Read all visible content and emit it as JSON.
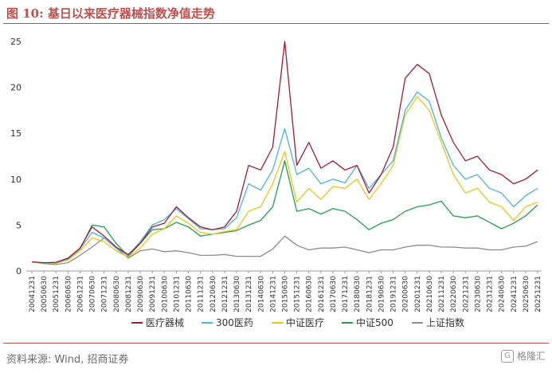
{
  "figure": {
    "title": "图 10:  基日以来医疗器械指数净值走势",
    "source": "资料来源: Wind, 招商证券",
    "watermark": "格隆汇"
  },
  "chart_data": {
    "type": "line",
    "ylim": [
      0,
      25
    ],
    "yticks": [
      0,
      5,
      10,
      15,
      20,
      25
    ],
    "grid": false,
    "legend_position": "bottom",
    "x_tick_labels": [
      "20041231",
      "20050630",
      "20051231",
      "20060630",
      "20061231",
      "20070630",
      "20071231",
      "20080630",
      "20081231",
      "20090630",
      "20091231",
      "20100630",
      "20101231",
      "20110630",
      "20111231",
      "20120630",
      "20121231",
      "20130630",
      "20131231",
      "20140630",
      "20141231",
      "20150630",
      "20151231",
      "20160630",
      "20161231",
      "20170630",
      "20171231",
      "20180630",
      "20181231",
      "20190630",
      "20191231",
      "20200630",
      "20201231",
      "20210630",
      "20211231",
      "20220630",
      "20221231",
      "20230630",
      "20231231",
      "20240630",
      "20241231",
      "20250630",
      "20251231"
    ],
    "series": [
      {
        "name": "医疗器械",
        "color": "#a31c2f",
        "values": [
          1.0,
          0.9,
          0.95,
          1.4,
          2.5,
          4.8,
          3.8,
          2.6,
          1.8,
          3.0,
          4.8,
          5.2,
          7.0,
          5.8,
          4.8,
          4.5,
          4.8,
          6.5,
          11.5,
          11.0,
          13.5,
          25.0,
          11.5,
          14.0,
          11.2,
          12.0,
          11.0,
          11.5,
          8.5,
          10.5,
          13.5,
          21.0,
          22.5,
          21.5,
          17.0,
          14.0,
          12.0,
          12.5,
          11.0,
          10.5,
          9.5,
          10.0,
          11.0
        ]
      },
      {
        "name": "300医药",
        "color": "#4bb3e0",
        "values": [
          1.0,
          0.85,
          0.9,
          1.3,
          2.4,
          4.2,
          3.6,
          2.5,
          1.7,
          3.2,
          5.0,
          5.6,
          6.8,
          5.7,
          4.6,
          4.5,
          4.6,
          5.8,
          9.5,
          8.8,
          11.0,
          15.5,
          10.5,
          11.2,
          9.5,
          10.0,
          9.6,
          11.5,
          9.0,
          10.5,
          12.0,
          17.5,
          19.5,
          18.5,
          14.5,
          11.5,
          10.0,
          10.5,
          9.0,
          8.5,
          7.0,
          8.2,
          9.0
        ]
      },
      {
        "name": "中证医疗",
        "color": "#f0c419",
        "values": [
          1.0,
          0.8,
          0.85,
          1.2,
          2.2,
          3.6,
          3.2,
          2.2,
          1.5,
          2.5,
          4.0,
          4.6,
          6.0,
          5.2,
          4.2,
          4.0,
          4.3,
          4.5,
          6.5,
          7.0,
          9.5,
          13.0,
          7.5,
          9.0,
          7.8,
          9.2,
          9.0,
          10.0,
          7.8,
          9.5,
          11.5,
          17.0,
          19.0,
          17.5,
          14.0,
          10.5,
          8.5,
          9.0,
          7.5,
          7.0,
          5.5,
          7.0,
          7.5
        ]
      },
      {
        "name": "中证500",
        "color": "#22a24a",
        "values": [
          1.0,
          0.85,
          0.85,
          1.3,
          2.4,
          5.0,
          4.8,
          3.0,
          1.6,
          3.0,
          4.5,
          4.6,
          5.3,
          4.8,
          3.8,
          4.0,
          4.2,
          4.4,
          5.0,
          5.5,
          7.0,
          12.0,
          6.5,
          6.8,
          6.2,
          6.8,
          6.5,
          5.6,
          4.5,
          5.2,
          5.6,
          6.5,
          7.0,
          7.2,
          7.6,
          6.0,
          5.8,
          6.0,
          5.3,
          4.6,
          5.2,
          6.0,
          7.2
        ]
      },
      {
        "name": "上证指数",
        "color": "#8c8c8c",
        "values": [
          1.0,
          0.8,
          0.7,
          0.9,
          1.7,
          2.6,
          3.6,
          2.5,
          1.4,
          2.2,
          2.4,
          2.1,
          2.2,
          2.0,
          1.7,
          1.7,
          1.8,
          1.6,
          1.6,
          1.6,
          2.4,
          3.8,
          2.8,
          2.3,
          2.5,
          2.5,
          2.6,
          2.3,
          2.0,
          2.3,
          2.3,
          2.6,
          2.8,
          2.8,
          2.6,
          2.6,
          2.5,
          2.5,
          2.3,
          2.3,
          2.6,
          2.7,
          3.2
        ]
      }
    ]
  }
}
